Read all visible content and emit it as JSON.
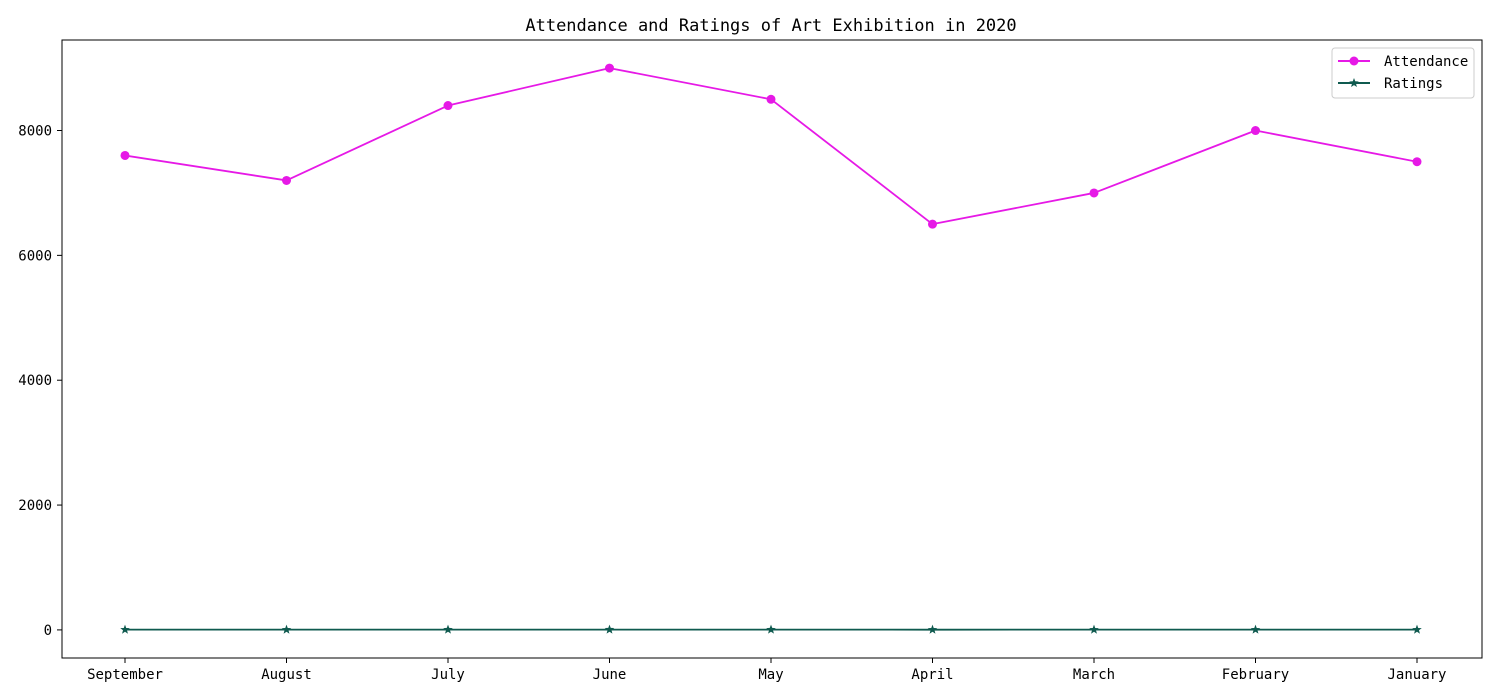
{
  "chart_data": {
    "type": "line",
    "title": "Attendance and Ratings of Art Exhibition in 2020",
    "xlabel": "",
    "ylabel": "",
    "categories": [
      "September",
      "August",
      "July",
      "June",
      "May",
      "April",
      "March",
      "February",
      "January"
    ],
    "series": [
      {
        "name": "Attendance",
        "values": [
          7600,
          7200,
          8400,
          9000,
          8500,
          6500,
          7000,
          8000,
          7500
        ],
        "color": "#e619e6",
        "marker": "circle"
      },
      {
        "name": "Ratings",
        "values": [
          4.3,
          4.1,
          4.6,
          4.8,
          4.5,
          3.9,
          4.2,
          4.4,
          4.0
        ],
        "color": "#0f5a4f",
        "marker": "star"
      }
    ],
    "y_ticks": [
      "0",
      "2000",
      "4000",
      "6000",
      "8000"
    ],
    "ylim": [
      -450,
      9450
    ],
    "grid": false,
    "legend_position": "top-right"
  }
}
